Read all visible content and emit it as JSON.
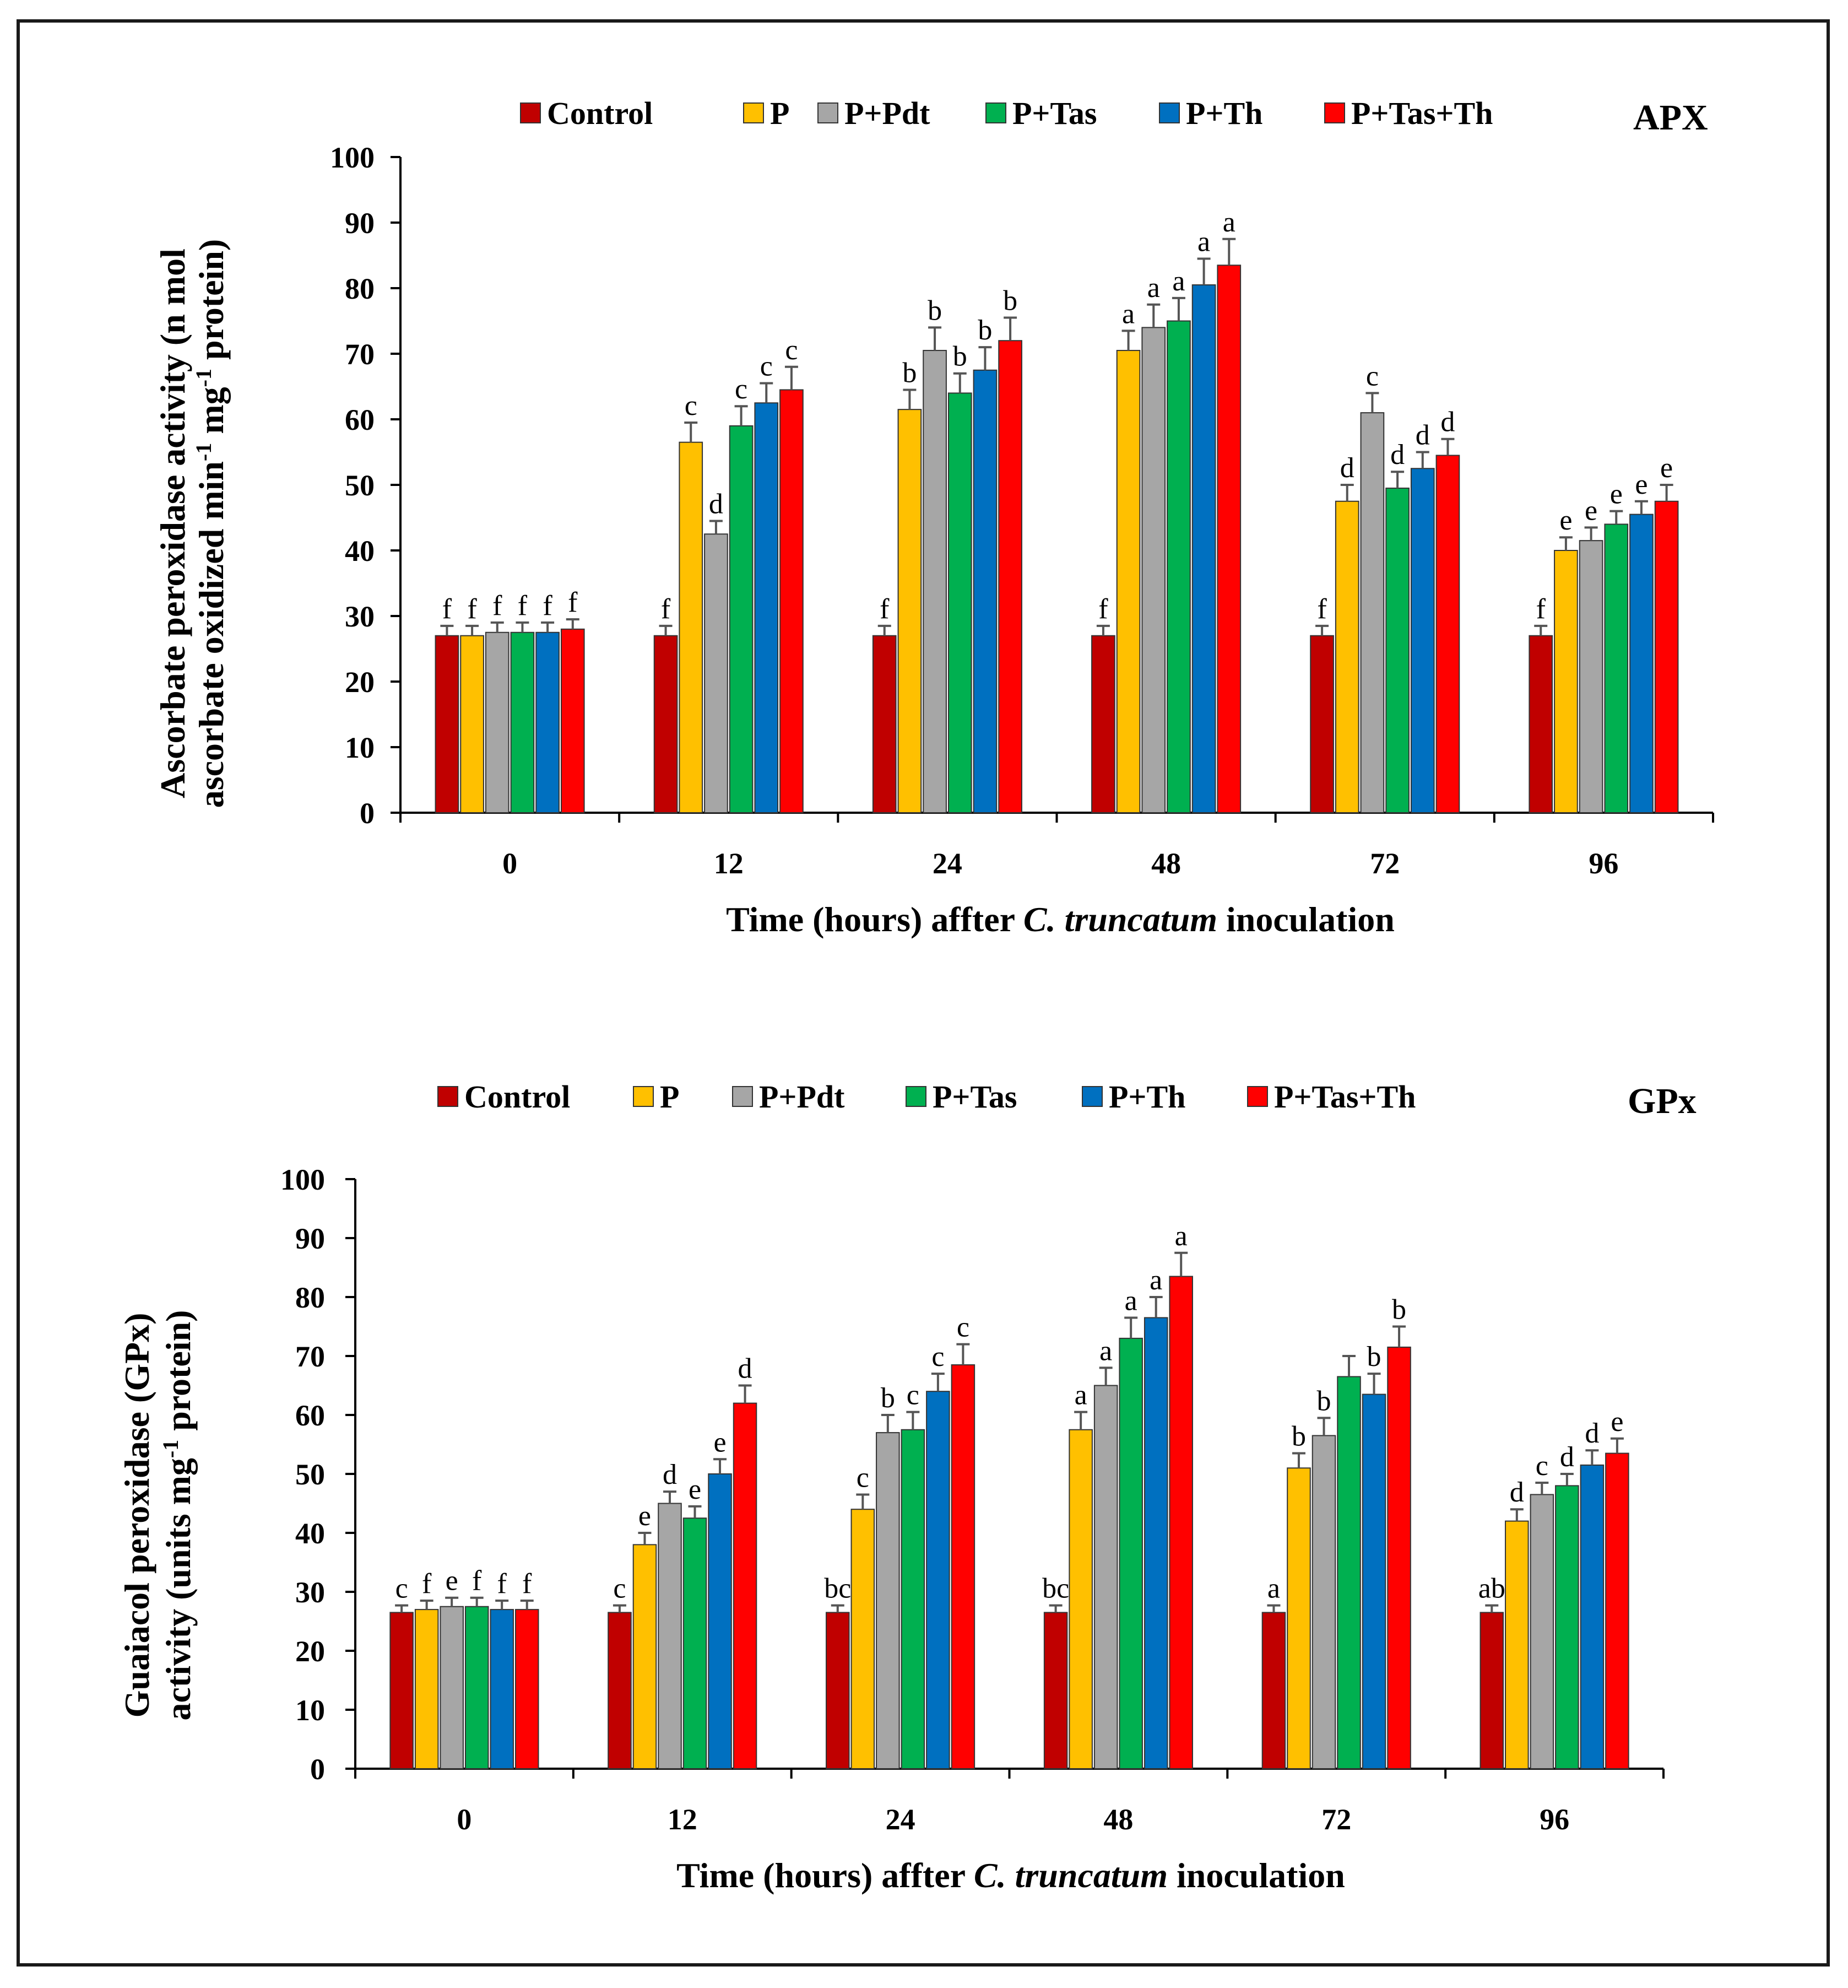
{
  "chart_data": [
    {
      "type": "bar",
      "title": "APX",
      "xlabel": "Time (hours) affter C. truncatum inoculation",
      "xlabel_parts": [
        "Time (hours) affter ",
        "C. truncatum",
        " inoculation"
      ],
      "ylabel_lines": [
        "Ascorbate peroxidase activity (n mol",
        "ascorbate oxidized min",
        "-1",
        " mg",
        "-1",
        " protein)"
      ],
      "ylim": [
        0,
        100
      ],
      "yticks": [
        0,
        10,
        20,
        30,
        40,
        50,
        60,
        70,
        80,
        90,
        100
      ],
      "categories": [
        "0",
        "12",
        "24",
        "48",
        "72",
        "96"
      ],
      "series": [
        {
          "name": "Control",
          "color": "#c00000",
          "values": [
            27,
            27,
            27,
            27,
            27,
            27
          ],
          "errors": [
            1.5,
            1.5,
            1.5,
            1.5,
            1.5,
            1.5
          ],
          "letters": [
            "f",
            "f",
            "f",
            "f",
            "f",
            "f"
          ]
        },
        {
          "name": "P",
          "color": "#ffc000",
          "values": [
            27,
            56.5,
            61.5,
            70.5,
            47.5,
            40
          ],
          "errors": [
            1.5,
            3,
            3,
            3,
            2.5,
            2
          ],
          "letters": [
            "f",
            "c",
            "b",
            "a",
            "d",
            "e"
          ]
        },
        {
          "name": "P+Pdt",
          "color": "#a6a6a6",
          "values": [
            27.5,
            42.5,
            70.5,
            74,
            61,
            41.5
          ],
          "errors": [
            1.5,
            2,
            3.5,
            3.5,
            3,
            2
          ],
          "letters": [
            "f",
            "d",
            "b",
            "a",
            "c",
            "e"
          ]
        },
        {
          "name": "P+Tas",
          "color": "#00b050",
          "values": [
            27.5,
            59,
            64,
            75,
            49.5,
            44
          ],
          "errors": [
            1.5,
            3,
            3,
            3.5,
            2.5,
            2
          ],
          "letters": [
            "f",
            "c",
            "b",
            "a",
            "d",
            "e"
          ]
        },
        {
          "name": "P+Th",
          "color": "#0070c0",
          "values": [
            27.5,
            62.5,
            67.5,
            80.5,
            52.5,
            45.5
          ],
          "errors": [
            1.5,
            3,
            3.5,
            4,
            2.5,
            2
          ],
          "letters": [
            "f",
            "c",
            "b",
            "a",
            "d",
            "e"
          ]
        },
        {
          "name": "P+Tas+Th",
          "color": "#ff0000",
          "values": [
            28,
            64.5,
            72,
            83.5,
            54.5,
            47.5
          ],
          "errors": [
            1.5,
            3.5,
            3.5,
            4,
            2.5,
            2.5
          ],
          "letters": [
            "f",
            "c",
            "b",
            "a",
            "d",
            "e"
          ]
        }
      ]
    },
    {
      "type": "bar",
      "title": "GPx",
      "xlabel": "Time (hours) affter C. truncatum inoculation",
      "xlabel_parts": [
        "Time (hours) affter ",
        "C. truncatum",
        " inoculation"
      ],
      "ylabel_lines": [
        "Guaiacol peroxidase (GPx)",
        "activity  (units mg",
        "-1",
        " protein)"
      ],
      "ylim": [
        0,
        100
      ],
      "yticks": [
        0,
        10,
        20,
        30,
        40,
        50,
        60,
        70,
        80,
        90,
        100
      ],
      "categories": [
        "0",
        "12",
        "24",
        "48",
        "72",
        "96"
      ],
      "series": [
        {
          "name": "Control",
          "color": "#c00000",
          "values": [
            26.5,
            26.5,
            26.5,
            26.5,
            26.5,
            26.5
          ],
          "errors": [
            1.2,
            1.2,
            1.2,
            1.2,
            1.2,
            1.2
          ],
          "letters": [
            "c",
            "c",
            "bc",
            "bc",
            "a",
            "ab"
          ]
        },
        {
          "name": "P",
          "color": "#ffc000",
          "values": [
            27,
            38,
            44,
            57.5,
            51,
            42
          ],
          "errors": [
            1.5,
            2,
            2.5,
            3,
            2.5,
            2
          ],
          "letters": [
            "f",
            "e",
            "c",
            "a",
            "b",
            "d"
          ]
        },
        {
          "name": "P+Pdt",
          "color": "#a6a6a6",
          "values": [
            27.5,
            45,
            57,
            65,
            56.5,
            46.5
          ],
          "errors": [
            1.5,
            2,
            3,
            3,
            3,
            2
          ],
          "letters": [
            "e",
            "d",
            "b",
            "a",
            "b",
            "c"
          ]
        },
        {
          "name": "P+Tas",
          "color": "#00b050",
          "values": [
            27.5,
            42.5,
            57.5,
            73,
            66.5,
            48
          ],
          "errors": [
            1.5,
            2,
            3,
            3.5,
            3.5,
            2
          ],
          "letters": [
            "f",
            "e",
            "c",
            "a",
            "",
            "d"
          ]
        },
        {
          "name": "P+Th",
          "color": "#0070c0",
          "values": [
            27,
            50,
            64,
            76.5,
            63.5,
            51.5
          ],
          "errors": [
            1.5,
            2.5,
            3,
            3.5,
            3.5,
            2.5
          ],
          "letters": [
            "f",
            "e",
            "c",
            "a",
            "b",
            "d"
          ]
        },
        {
          "name": "P+Tas+Th",
          "color": "#ff0000",
          "values": [
            27,
            62,
            68.5,
            83.5,
            71.5,
            53.5
          ],
          "errors": [
            1.5,
            3,
            3.5,
            4,
            3.5,
            2.5
          ],
          "letters": [
            "f",
            "d",
            "c",
            "a",
            "b",
            "e"
          ]
        }
      ]
    }
  ]
}
